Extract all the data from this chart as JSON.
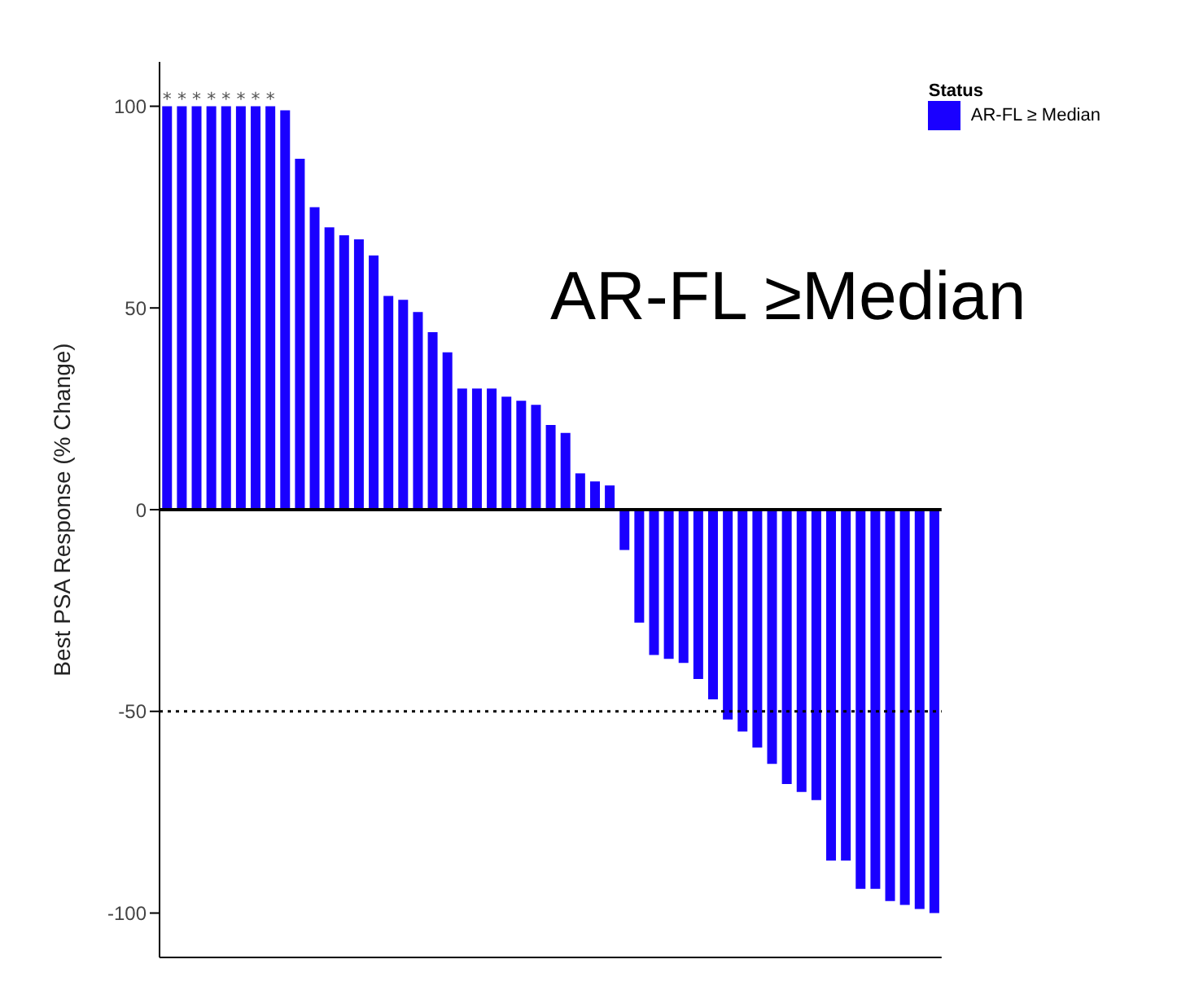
{
  "chart_data": {
    "type": "bar",
    "ylabel": "Best PSA Response (% Change)",
    "legend_title": "Status",
    "categories": [
      null,
      null,
      null,
      null,
      null,
      null,
      null,
      null,
      null,
      null,
      null,
      null,
      null,
      null,
      null,
      null,
      null,
      null,
      null,
      null,
      null,
      null,
      null,
      null,
      null,
      null,
      null,
      null,
      null,
      null,
      null,
      null,
      null,
      null,
      null,
      null,
      null,
      null,
      null,
      null,
      null,
      null,
      null,
      null,
      null,
      null,
      null,
      null,
      null,
      null,
      null,
      null,
      null
    ],
    "series": [
      {
        "name": "AR-FL ≥ Median",
        "color": "#1a00ff",
        "values": [
          100,
          100,
          100,
          100,
          100,
          100,
          100,
          100,
          99,
          87,
          75,
          70,
          68,
          67,
          63,
          53,
          52,
          49,
          44,
          39,
          30,
          30,
          30,
          28,
          27,
          26,
          21,
          19,
          9,
          7,
          6,
          -10,
          -28,
          -36,
          -37,
          -38,
          -42,
          -47,
          -52,
          -55,
          -59,
          -63,
          -68,
          -70,
          -72,
          -87,
          -87,
          -94,
          -94,
          -97,
          -98,
          -99,
          -100
        ],
        "value_labels": [
          "*",
          "*",
          "*",
          "*",
          "*",
          "*",
          "*",
          "*",
          null,
          null,
          null,
          null,
          null,
          null,
          null,
          null,
          null,
          null,
          null,
          null,
          null,
          null,
          null,
          null,
          null,
          null,
          null,
          null,
          null,
          null,
          null,
          null,
          null,
          null,
          null,
          null,
          null,
          null,
          null,
          null,
          null,
          null,
          null,
          null,
          null,
          null,
          null,
          null,
          null,
          null,
          null,
          null,
          null
        ]
      }
    ],
    "ylim": [
      -111,
      111
    ],
    "yticks": [
      -100,
      -50,
      0,
      50,
      100
    ],
    "tick_labels": "y",
    "grid": false,
    "legend": "top right",
    "ref_lines": [
      {
        "axis": "y",
        "value": 0,
        "line_style": "solid",
        "color": "#000000"
      },
      {
        "axis": "y",
        "value": -50,
        "line_style": "dotted",
        "color": "#000000"
      }
    ],
    "annotations": [
      "AR-FL ≥Median"
    ]
  }
}
